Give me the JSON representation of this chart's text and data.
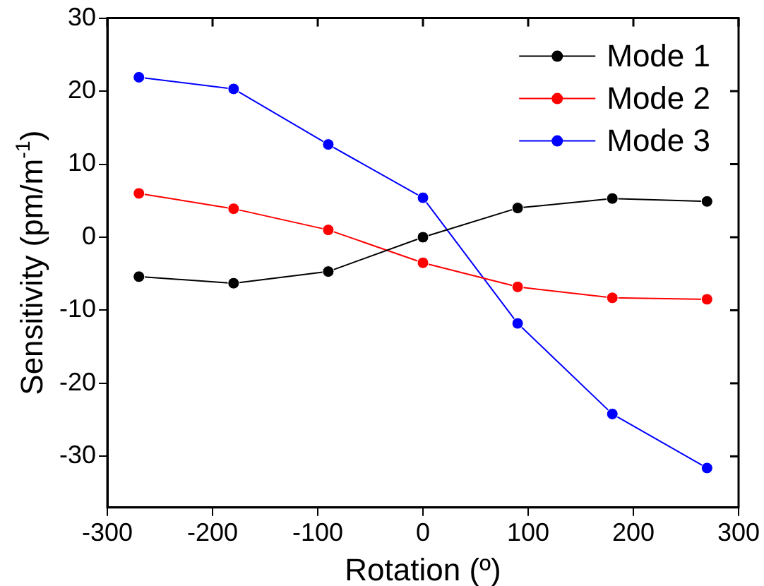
{
  "chart_data": {
    "type": "line",
    "xlabel": "Rotation (º)",
    "ylabel": "Sensitivity (pm/m$^{-1}$)",
    "x": [
      -270,
      -180,
      -90,
      0,
      90,
      180,
      270
    ],
    "series": [
      {
        "name": "Mode 1",
        "color": "#000000",
        "values": [
          -5.4,
          -6.3,
          -4.7,
          0,
          4.0,
          5.3,
          4.9
        ]
      },
      {
        "name": "Mode 2",
        "color": "#ff0000",
        "values": [
          6.0,
          3.9,
          1.0,
          -3.5,
          -6.8,
          -8.3,
          -8.5
        ]
      },
      {
        "name": "Mode 3",
        "color": "#0000ff",
        "values": [
          21.9,
          20.3,
          12.7,
          5.4,
          -11.8,
          -24.2,
          -31.6
        ]
      }
    ],
    "xlim": [
      -300,
      300
    ],
    "xticks": [
      -300,
      -200,
      -100,
      0,
      100,
      200,
      300
    ],
    "ylim": [
      -37,
      30
    ],
    "yticks": [
      -30,
      -20,
      -10,
      0,
      10,
      20,
      30
    ],
    "grid": false,
    "legend": "top right",
    "marker": "circle",
    "line_style": "solid"
  }
}
